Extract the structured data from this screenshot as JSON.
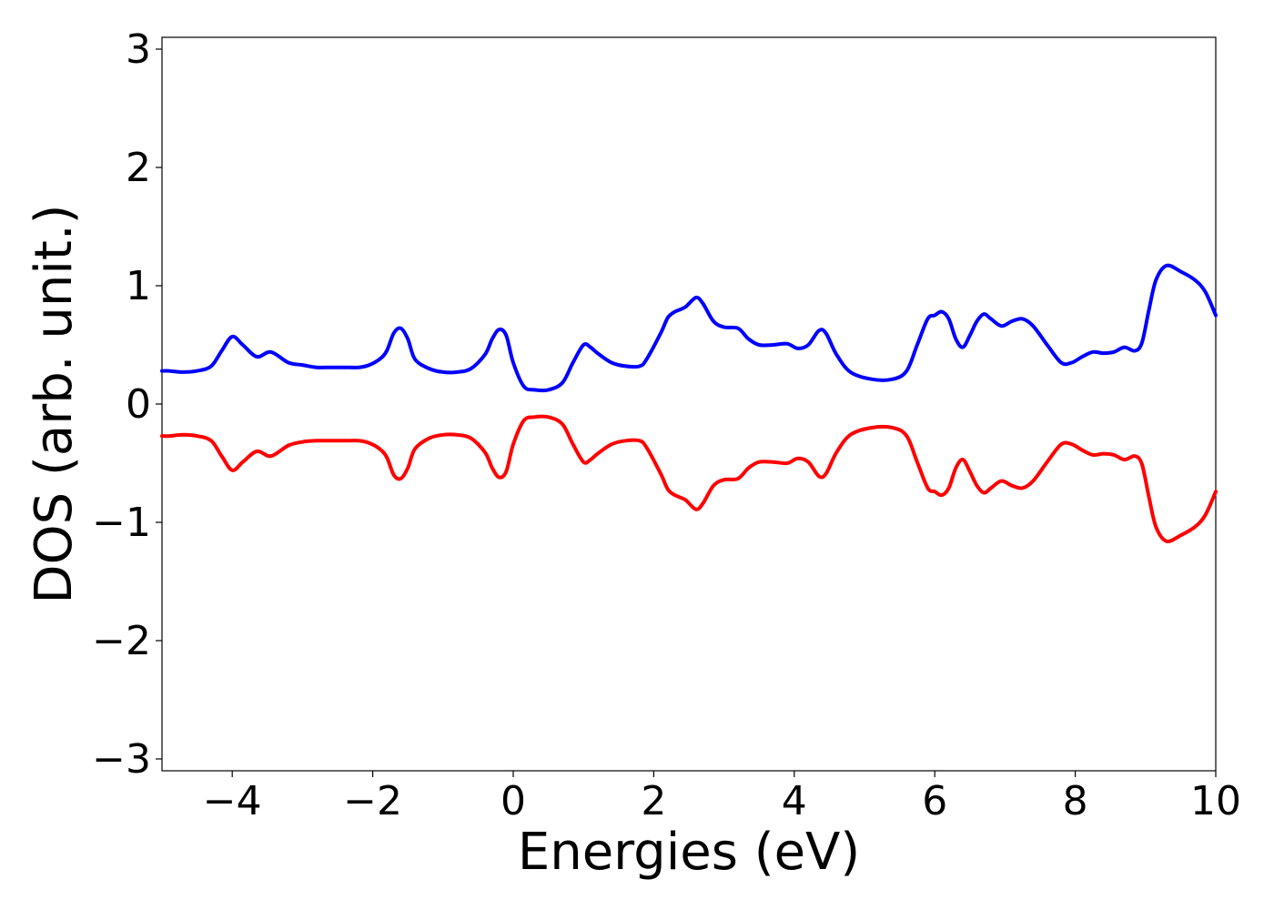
{
  "chart_data": {
    "type": "line",
    "title": "",
    "xlabel": "Energies (eV)",
    "ylabel": "DOS (arb. unit.)",
    "xlim": [
      -5,
      10
    ],
    "ylim": [
      -3.1,
      3.1
    ],
    "xticks": [
      -4,
      -2,
      0,
      2,
      4,
      6,
      8,
      10
    ],
    "xtick_labels": [
      "−4",
      "−2",
      "0",
      "2",
      "4",
      "6",
      "8",
      "10"
    ],
    "yticks": [
      -3,
      -2,
      -1,
      0,
      1,
      2,
      3
    ],
    "ytick_labels": [
      "−3",
      "−2",
      "−1",
      "0",
      "1",
      "2",
      "3"
    ],
    "grid": false,
    "legend": "none",
    "series": [
      {
        "color": "#0000ff",
        "x": [
          -5.0,
          -4.9,
          -4.7,
          -4.5,
          -4.3,
          -4.15,
          -4.0,
          -3.85,
          -3.65,
          -3.45,
          -3.2,
          -3.0,
          -2.8,
          -2.6,
          -2.4,
          -2.2,
          -2.05,
          -1.9,
          -1.8,
          -1.7,
          -1.6,
          -1.5,
          -1.4,
          -1.2,
          -1.0,
          -0.8,
          -0.6,
          -0.4,
          -0.3,
          -0.2,
          -0.1,
          0.0,
          0.15,
          0.3,
          0.5,
          0.7,
          0.85,
          1.0,
          1.1,
          1.2,
          1.4,
          1.6,
          1.8,
          1.9,
          2.1,
          2.2,
          2.3,
          2.45,
          2.6,
          2.7,
          2.85,
          3.0,
          3.2,
          3.35,
          3.5,
          3.7,
          3.9,
          4.05,
          4.2,
          4.35,
          4.45,
          4.6,
          4.8,
          5.1,
          5.4,
          5.6,
          5.75,
          5.9,
          6.0,
          6.1,
          6.2,
          6.3,
          6.4,
          6.5,
          6.6,
          6.7,
          6.8,
          6.95,
          7.1,
          7.25,
          7.4,
          7.6,
          7.8,
          7.95,
          8.1,
          8.25,
          8.4,
          8.55,
          8.7,
          8.85,
          8.95,
          9.05,
          9.15,
          9.3,
          9.5,
          9.7,
          9.85,
          10.0
        ],
        "y": [
          0.28,
          0.28,
          0.27,
          0.28,
          0.32,
          0.45,
          0.57,
          0.5,
          0.4,
          0.44,
          0.35,
          0.33,
          0.31,
          0.31,
          0.31,
          0.31,
          0.33,
          0.38,
          0.45,
          0.6,
          0.64,
          0.55,
          0.38,
          0.3,
          0.27,
          0.27,
          0.3,
          0.42,
          0.55,
          0.63,
          0.58,
          0.35,
          0.15,
          0.12,
          0.12,
          0.18,
          0.35,
          0.5,
          0.48,
          0.43,
          0.35,
          0.32,
          0.32,
          0.38,
          0.6,
          0.73,
          0.78,
          0.82,
          0.9,
          0.85,
          0.7,
          0.65,
          0.64,
          0.55,
          0.5,
          0.5,
          0.51,
          0.47,
          0.5,
          0.62,
          0.6,
          0.42,
          0.27,
          0.21,
          0.21,
          0.28,
          0.5,
          0.72,
          0.75,
          0.78,
          0.72,
          0.55,
          0.48,
          0.58,
          0.7,
          0.76,
          0.72,
          0.66,
          0.7,
          0.72,
          0.66,
          0.5,
          0.35,
          0.35,
          0.4,
          0.44,
          0.43,
          0.44,
          0.48,
          0.45,
          0.52,
          0.8,
          1.05,
          1.17,
          1.12,
          1.05,
          0.95,
          0.75
        ]
      },
      {
        "color": "#ff0000",
        "x": [
          -5.0,
          -4.9,
          -4.7,
          -4.5,
          -4.3,
          -4.15,
          -4.0,
          -3.85,
          -3.65,
          -3.45,
          -3.2,
          -3.0,
          -2.8,
          -2.6,
          -2.4,
          -2.2,
          -2.05,
          -1.9,
          -1.8,
          -1.7,
          -1.6,
          -1.5,
          -1.4,
          -1.2,
          -1.0,
          -0.8,
          -0.6,
          -0.4,
          -0.3,
          -0.2,
          -0.1,
          0.0,
          0.15,
          0.3,
          0.5,
          0.7,
          0.85,
          1.0,
          1.1,
          1.2,
          1.4,
          1.6,
          1.8,
          1.9,
          2.1,
          2.2,
          2.3,
          2.45,
          2.6,
          2.7,
          2.85,
          3.0,
          3.2,
          3.35,
          3.5,
          3.7,
          3.9,
          4.05,
          4.2,
          4.35,
          4.45,
          4.6,
          4.8,
          5.1,
          5.4,
          5.6,
          5.75,
          5.9,
          6.0,
          6.1,
          6.2,
          6.3,
          6.4,
          6.5,
          6.6,
          6.7,
          6.8,
          6.95,
          7.1,
          7.25,
          7.4,
          7.6,
          7.8,
          7.95,
          8.1,
          8.25,
          8.4,
          8.55,
          8.7,
          8.85,
          8.95,
          9.05,
          9.15,
          9.3,
          9.5,
          9.7,
          9.85,
          10.0
        ],
        "y": [
          -0.27,
          -0.27,
          -0.26,
          -0.27,
          -0.31,
          -0.44,
          -0.56,
          -0.49,
          -0.4,
          -0.44,
          -0.35,
          -0.32,
          -0.31,
          -0.31,
          -0.31,
          -0.31,
          -0.33,
          -0.38,
          -0.45,
          -0.6,
          -0.63,
          -0.54,
          -0.38,
          -0.29,
          -0.26,
          -0.26,
          -0.29,
          -0.41,
          -0.54,
          -0.62,
          -0.57,
          -0.34,
          -0.14,
          -0.11,
          -0.11,
          -0.17,
          -0.34,
          -0.49,
          -0.47,
          -0.42,
          -0.34,
          -0.31,
          -0.31,
          -0.37,
          -0.59,
          -0.72,
          -0.77,
          -0.81,
          -0.89,
          -0.84,
          -0.69,
          -0.64,
          -0.63,
          -0.54,
          -0.49,
          -0.49,
          -0.5,
          -0.46,
          -0.49,
          -0.61,
          -0.59,
          -0.41,
          -0.26,
          -0.2,
          -0.2,
          -0.27,
          -0.49,
          -0.71,
          -0.74,
          -0.77,
          -0.71,
          -0.54,
          -0.47,
          -0.57,
          -0.69,
          -0.75,
          -0.71,
          -0.65,
          -0.69,
          -0.71,
          -0.65,
          -0.49,
          -0.34,
          -0.34,
          -0.39,
          -0.43,
          -0.42,
          -0.43,
          -0.47,
          -0.44,
          -0.51,
          -0.79,
          -1.04,
          -1.16,
          -1.11,
          -1.04,
          -0.94,
          -0.74
        ]
      }
    ]
  }
}
